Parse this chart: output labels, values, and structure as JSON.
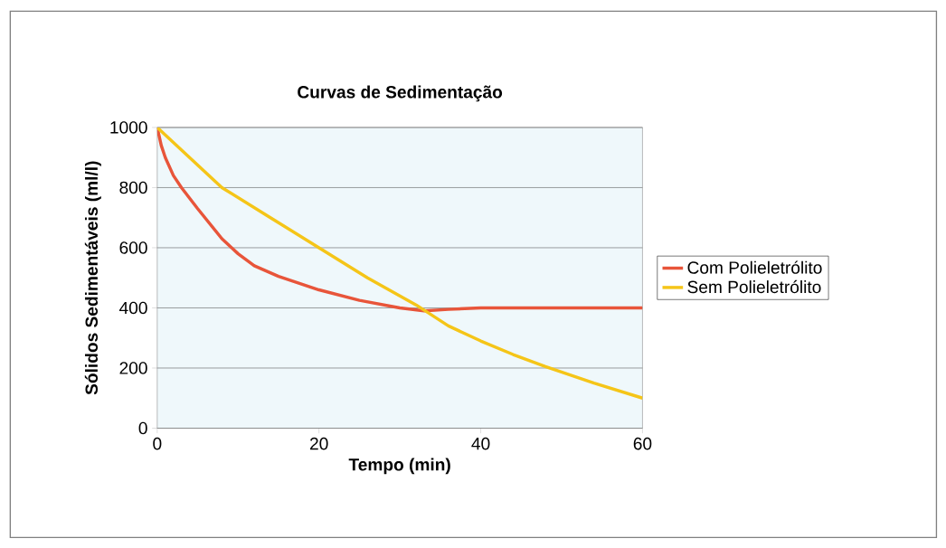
{
  "chart_data": {
    "type": "line",
    "title": "Curvas de Sedimentação",
    "xlabel": "Tempo (min)",
    "ylabel": "Sólidos Sedimentáveis (ml/l)",
    "xlim": [
      0,
      60
    ],
    "xticks": [
      0,
      20,
      40,
      60
    ],
    "ylim": [
      0,
      1000
    ],
    "yticks": [
      0,
      200,
      400,
      600,
      800,
      1000
    ],
    "grid": "y",
    "legend": "right",
    "marker": "none",
    "series": [
      {
        "name": "Com Polieletrólito",
        "color": "#e8553a",
        "x": [
          0,
          0.5,
          1,
          2,
          3,
          5,
          8,
          10,
          12,
          15,
          20,
          25,
          30,
          33,
          36,
          40,
          50,
          60
        ],
        "values": [
          1000,
          940,
          900,
          840,
          800,
          730,
          630,
          580,
          540,
          505,
          460,
          425,
          400,
          390,
          395,
          400,
          400,
          400
        ]
      },
      {
        "name": "Sem Polieletrólito",
        "color": "#f5c518",
        "x": [
          0,
          8,
          14,
          20,
          26,
          32,
          36,
          40,
          44,
          48,
          54,
          60
        ],
        "values": [
          1000,
          800,
          700,
          600,
          500,
          410,
          340,
          290,
          245,
          205,
          150,
          100
        ]
      }
    ]
  }
}
